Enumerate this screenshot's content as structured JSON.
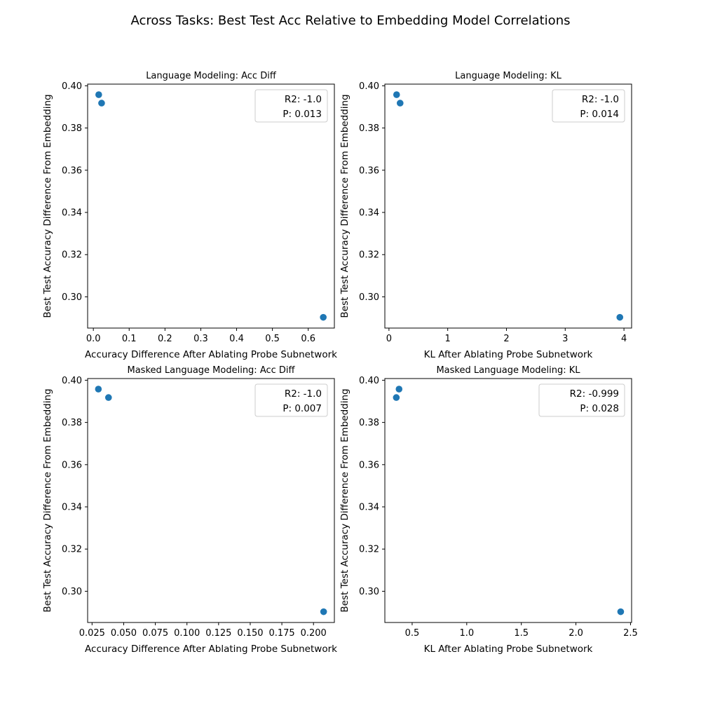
{
  "figure": {
    "title": "Across Tasks: Best Test Acc Relative to Embedding Model Correlations"
  },
  "chart_data": [
    {
      "type": "scatter",
      "title": "Language Modeling: Acc Diff",
      "xlabel": "Accuracy Difference After Ablating Probe Subnetwork",
      "ylabel": "Best Test Accuracy Difference From Embedding",
      "xlim": [
        -0.016,
        0.673
      ],
      "ylim": [
        0.2852,
        0.4008
      ],
      "x_ticks": [
        0.0,
        0.1,
        0.2,
        0.3,
        0.4,
        0.5,
        0.6
      ],
      "x_tick_labels": [
        "0.0",
        "0.1",
        "0.2",
        "0.3",
        "0.4",
        "0.5",
        "0.6"
      ],
      "y_ticks": [
        0.3,
        0.32,
        0.34,
        0.36,
        0.38,
        0.4
      ],
      "y_tick_labels": [
        "0.30",
        "0.32",
        "0.34",
        "0.36",
        "0.38",
        "0.40"
      ],
      "points": [
        {
          "x": 0.015,
          "y": 0.3958
        },
        {
          "x": 0.023,
          "y": 0.3918
        },
        {
          "x": 0.642,
          "y": 0.2903
        }
      ],
      "color": "#1f77b4",
      "legend": {
        "placement": "upper-right",
        "entries": [
          "R2: -1.0",
          "P: 0.013"
        ]
      }
    },
    {
      "type": "scatter",
      "title": "Language Modeling: KL",
      "xlabel": "KL After Ablating Probe Subnetwork",
      "ylabel": "Best Test Accuracy Difference From Embedding",
      "xlim": [
        -0.07,
        4.13
      ],
      "ylim": [
        0.2852,
        0.4008
      ],
      "x_ticks": [
        0,
        1,
        2,
        3,
        4
      ],
      "x_tick_labels": [
        "0",
        "1",
        "2",
        "3",
        "4"
      ],
      "y_ticks": [
        0.3,
        0.32,
        0.34,
        0.36,
        0.38,
        0.4
      ],
      "y_tick_labels": [
        "0.30",
        "0.32",
        "0.34",
        "0.36",
        "0.38",
        "0.40"
      ],
      "points": [
        {
          "x": 0.13,
          "y": 0.3958
        },
        {
          "x": 0.19,
          "y": 0.3918
        },
        {
          "x": 3.93,
          "y": 0.2903
        }
      ],
      "color": "#1f77b4",
      "legend": {
        "placement": "upper-right",
        "entries": [
          "R2: -1.0",
          "P: 0.014"
        ]
      }
    },
    {
      "type": "scatter",
      "title": "Masked Language Modeling: Acc Diff",
      "xlabel": "Accuracy Difference After Ablating Probe Subnetwork",
      "ylabel": "Best Test Accuracy Difference From Embedding",
      "xlim": [
        0.0215,
        0.2165
      ],
      "ylim": [
        0.2852,
        0.4008
      ],
      "x_ticks": [
        0.025,
        0.05,
        0.075,
        0.1,
        0.125,
        0.15,
        0.175,
        0.2
      ],
      "x_tick_labels": [
        "0.025",
        "0.050",
        "0.075",
        "0.100",
        "0.125",
        "0.150",
        "0.175",
        "0.200"
      ],
      "y_ticks": [
        0.3,
        0.32,
        0.34,
        0.36,
        0.38,
        0.4
      ],
      "y_tick_labels": [
        "0.30",
        "0.32",
        "0.34",
        "0.36",
        "0.38",
        "0.40"
      ],
      "points": [
        {
          "x": 0.03,
          "y": 0.3958
        },
        {
          "x": 0.038,
          "y": 0.3918
        },
        {
          "x": 0.208,
          "y": 0.2903
        }
      ],
      "color": "#1f77b4",
      "legend": {
        "placement": "upper-right",
        "entries": [
          "R2: -1.0",
          "P: 0.007"
        ]
      }
    },
    {
      "type": "scatter",
      "title": "Masked Language Modeling: KL",
      "xlabel": "KL After Ablating Probe Subnetwork",
      "ylabel": "Best Test Accuracy Difference From Embedding",
      "xlim": [
        0.25,
        2.51
      ],
      "ylim": [
        0.2852,
        0.4008
      ],
      "x_ticks": [
        0.5,
        1.0,
        1.5,
        2.0,
        2.5
      ],
      "x_tick_labels": [
        "0.5",
        "1.0",
        "1.5",
        "2.0",
        "2.5"
      ],
      "y_ticks": [
        0.3,
        0.32,
        0.34,
        0.36,
        0.38,
        0.4
      ],
      "y_tick_labels": [
        "0.30",
        "0.32",
        "0.34",
        "0.36",
        "0.38",
        "0.40"
      ],
      "points": [
        {
          "x": 0.38,
          "y": 0.3958
        },
        {
          "x": 0.355,
          "y": 0.3918
        },
        {
          "x": 2.41,
          "y": 0.2903
        }
      ],
      "color": "#1f77b4",
      "legend": {
        "placement": "upper-right",
        "entries": [
          "R2: -0.999",
          "P: 0.028"
        ]
      }
    }
  ]
}
